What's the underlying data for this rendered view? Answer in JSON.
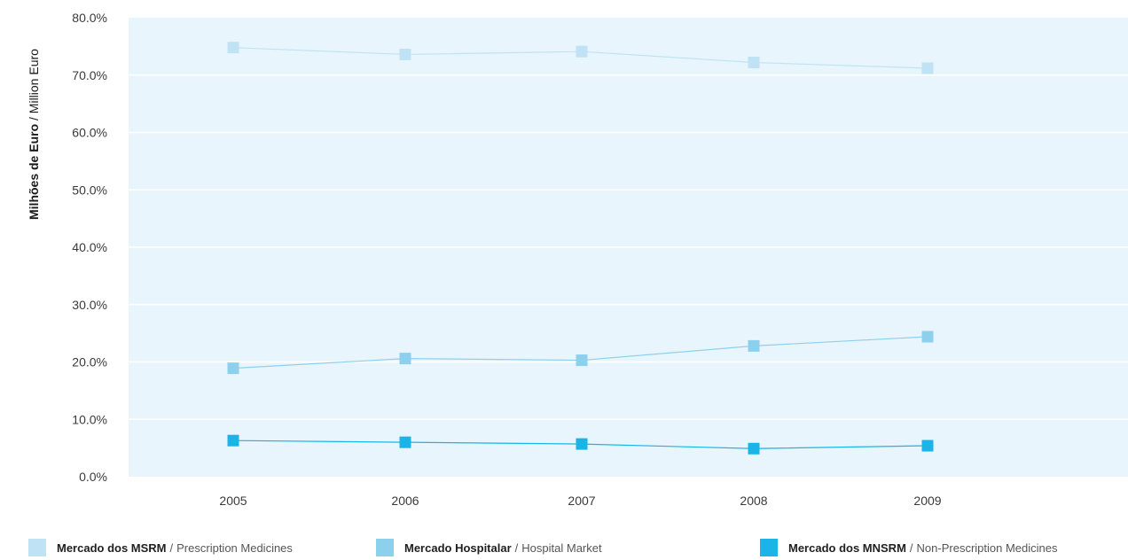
{
  "chart_data": {
    "type": "line",
    "ylabel_pt": "Milhões de Euro",
    "ylabel_sep": " / ",
    "ylabel_en": "Million Euro",
    "categories": [
      "2005",
      "2006",
      "2007",
      "2008",
      "2009"
    ],
    "yticks": [
      "0.0%",
      "10.0%",
      "20.0%",
      "30.0%",
      "40.0%",
      "50.0%",
      "60.0%",
      "70.0%",
      "80.0%"
    ],
    "ylim": [
      0,
      80
    ],
    "grid": true,
    "legend_position": "bottom",
    "plot_background": "#e9f5fc",
    "series": [
      {
        "name_pt": "Mercado dos MSRM",
        "name_en": "Prescription Medicines",
        "color": "#bfe3f5",
        "values": [
          74.8,
          73.6,
          74.1,
          72.2,
          71.2
        ]
      },
      {
        "name_pt": "Mercado Hospitalar",
        "name_en": "Hospital Market",
        "color": "#8dd0ee",
        "values": [
          18.9,
          20.6,
          20.3,
          22.8,
          24.4
        ]
      },
      {
        "name_pt": "Mercado dos MNSRM",
        "name_en": "Non-Prescription Medicines",
        "color": "#1ab4e6",
        "values": [
          6.3,
          6.0,
          5.7,
          4.9,
          5.4
        ]
      }
    ]
  }
}
